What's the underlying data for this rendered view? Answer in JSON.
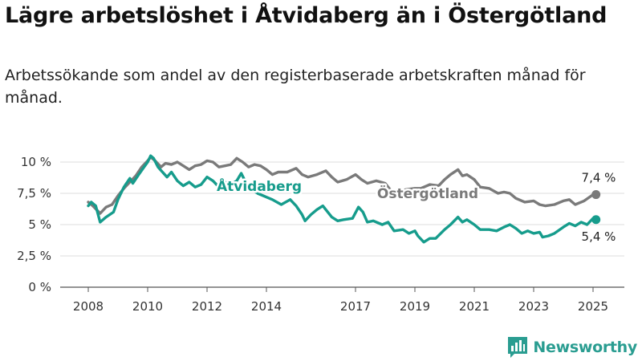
{
  "title": "Lägre arbetslöshet i Åtvidaberg än i Östergötland",
  "subtitle": "Arbetssökande som andel av den registerbaserade arbetskraften månad för månad.",
  "brand": "Newsworthy",
  "colors": {
    "atvidaberg": "#169c8c",
    "ostergotland": "#7a7a7a",
    "grid": "#dddddd",
    "brand": "#2a9d91"
  },
  "icons": {
    "logo": "bar-chart-icon"
  },
  "chart_data": {
    "type": "line",
    "x_ticks": [
      "2008",
      "2010",
      "2012",
      "2014",
      "2017",
      "2019",
      "2021",
      "2023",
      "2025"
    ],
    "y_ticks": [
      "0 %",
      "2,5 %",
      "5 %",
      "7,5 %",
      "10 %"
    ],
    "ylim": [
      0,
      10
    ],
    "series": [
      {
        "name": "Åtvidaberg",
        "end_label": "5,4 %",
        "values": [
          [
            2008.0,
            6.5
          ],
          [
            2008.1,
            6.8
          ],
          [
            2008.25,
            6.5
          ],
          [
            2008.4,
            5.2
          ],
          [
            2008.6,
            5.6
          ],
          [
            2008.85,
            6.0
          ],
          [
            2009.0,
            7.0
          ],
          [
            2009.2,
            8.0
          ],
          [
            2009.4,
            8.7
          ],
          [
            2009.5,
            8.3
          ],
          [
            2009.7,
            9.0
          ],
          [
            2009.85,
            9.5
          ],
          [
            2010.0,
            10.0
          ],
          [
            2010.1,
            10.5
          ],
          [
            2010.2,
            10.3
          ],
          [
            2010.35,
            9.6
          ],
          [
            2010.5,
            9.2
          ],
          [
            2010.65,
            8.8
          ],
          [
            2010.8,
            9.2
          ],
          [
            2011.0,
            8.5
          ],
          [
            2011.2,
            8.1
          ],
          [
            2011.4,
            8.4
          ],
          [
            2011.6,
            8.0
          ],
          [
            2011.8,
            8.2
          ],
          [
            2012.0,
            8.8
          ],
          [
            2012.2,
            8.5
          ],
          [
            2012.4,
            8.0
          ],
          [
            2012.6,
            8.4
          ],
          [
            2012.8,
            8.2
          ],
          [
            2013.0,
            8.5
          ],
          [
            2013.15,
            9.1
          ],
          [
            2013.3,
            8.4
          ],
          [
            2013.5,
            7.8
          ],
          [
            2013.7,
            7.5
          ],
          [
            2014.0,
            7.2
          ],
          [
            2014.2,
            7.0
          ],
          [
            2014.5,
            6.6
          ],
          [
            2014.8,
            7.0
          ],
          [
            2015.0,
            6.5
          ],
          [
            2015.2,
            5.8
          ],
          [
            2015.3,
            5.3
          ],
          [
            2015.5,
            5.8
          ],
          [
            2015.7,
            6.2
          ],
          [
            2015.9,
            6.5
          ],
          [
            2016.0,
            6.2
          ],
          [
            2016.2,
            5.6
          ],
          [
            2016.4,
            5.3
          ],
          [
            2016.6,
            5.4
          ],
          [
            2016.9,
            5.5
          ],
          [
            2017.1,
            6.4
          ],
          [
            2017.25,
            6.0
          ],
          [
            2017.4,
            5.2
          ],
          [
            2017.6,
            5.3
          ],
          [
            2017.9,
            5.0
          ],
          [
            2018.1,
            5.2
          ],
          [
            2018.3,
            4.5
          ],
          [
            2018.6,
            4.6
          ],
          [
            2018.8,
            4.3
          ],
          [
            2019.0,
            4.5
          ],
          [
            2019.1,
            4.1
          ],
          [
            2019.3,
            3.6
          ],
          [
            2019.5,
            3.9
          ],
          [
            2019.7,
            3.9
          ],
          [
            2020.0,
            4.6
          ],
          [
            2020.2,
            5.0
          ],
          [
            2020.45,
            5.6
          ],
          [
            2020.6,
            5.2
          ],
          [
            2020.75,
            5.4
          ],
          [
            2021.0,
            5.0
          ],
          [
            2021.2,
            4.6
          ],
          [
            2021.5,
            4.6
          ],
          [
            2021.75,
            4.5
          ],
          [
            2022.0,
            4.8
          ],
          [
            2022.2,
            5.0
          ],
          [
            2022.4,
            4.7
          ],
          [
            2022.6,
            4.3
          ],
          [
            2022.8,
            4.5
          ],
          [
            2023.0,
            4.3
          ],
          [
            2023.2,
            4.4
          ],
          [
            2023.3,
            4.0
          ],
          [
            2023.5,
            4.1
          ],
          [
            2023.7,
            4.3
          ],
          [
            2024.0,
            4.8
          ],
          [
            2024.2,
            5.1
          ],
          [
            2024.4,
            4.9
          ],
          [
            2024.6,
            5.2
          ],
          [
            2024.8,
            5.0
          ],
          [
            2025.0,
            5.5
          ],
          [
            2025.1,
            5.4
          ]
        ]
      },
      {
        "name": "Östergötland",
        "end_label": "7,4 %",
        "values": [
          [
            2008.0,
            6.8
          ],
          [
            2008.15,
            6.5
          ],
          [
            2008.4,
            5.9
          ],
          [
            2008.6,
            6.4
          ],
          [
            2008.8,
            6.6
          ],
          [
            2009.0,
            7.3
          ],
          [
            2009.2,
            7.9
          ],
          [
            2009.4,
            8.4
          ],
          [
            2009.6,
            8.9
          ],
          [
            2009.8,
            9.6
          ],
          [
            2010.0,
            10.1
          ],
          [
            2010.1,
            10.4
          ],
          [
            2010.25,
            10.1
          ],
          [
            2010.45,
            9.6
          ],
          [
            2010.6,
            9.9
          ],
          [
            2010.8,
            9.8
          ],
          [
            2011.0,
            10.0
          ],
          [
            2011.2,
            9.7
          ],
          [
            2011.4,
            9.4
          ],
          [
            2011.6,
            9.7
          ],
          [
            2011.8,
            9.8
          ],
          [
            2012.0,
            10.1
          ],
          [
            2012.2,
            10.0
          ],
          [
            2012.4,
            9.6
          ],
          [
            2012.6,
            9.7
          ],
          [
            2012.8,
            9.8
          ],
          [
            2013.0,
            10.3
          ],
          [
            2013.2,
            10.0
          ],
          [
            2013.4,
            9.6
          ],
          [
            2013.6,
            9.8
          ],
          [
            2013.8,
            9.7
          ],
          [
            2014.0,
            9.4
          ],
          [
            2014.2,
            9.0
          ],
          [
            2014.4,
            9.2
          ],
          [
            2014.7,
            9.2
          ],
          [
            2015.0,
            9.5
          ],
          [
            2015.2,
            9.0
          ],
          [
            2015.4,
            8.8
          ],
          [
            2015.7,
            9.0
          ],
          [
            2016.0,
            9.3
          ],
          [
            2016.2,
            8.8
          ],
          [
            2016.4,
            8.4
          ],
          [
            2016.7,
            8.6
          ],
          [
            2017.0,
            9.0
          ],
          [
            2017.2,
            8.6
          ],
          [
            2017.4,
            8.3
          ],
          [
            2017.7,
            8.5
          ],
          [
            2018.0,
            8.3
          ],
          [
            2018.2,
            7.7
          ],
          [
            2018.4,
            7.6
          ],
          [
            2018.7,
            7.8
          ],
          [
            2019.0,
            7.9
          ],
          [
            2019.2,
            7.9
          ],
          [
            2019.5,
            8.2
          ],
          [
            2019.8,
            8.1
          ],
          [
            2020.0,
            8.6
          ],
          [
            2020.2,
            9.0
          ],
          [
            2020.45,
            9.4
          ],
          [
            2020.6,
            8.9
          ],
          [
            2020.75,
            9.0
          ],
          [
            2021.0,
            8.6
          ],
          [
            2021.2,
            8.0
          ],
          [
            2021.5,
            7.9
          ],
          [
            2021.8,
            7.5
          ],
          [
            2022.0,
            7.6
          ],
          [
            2022.2,
            7.5
          ],
          [
            2022.4,
            7.1
          ],
          [
            2022.7,
            6.8
          ],
          [
            2023.0,
            6.9
          ],
          [
            2023.2,
            6.6
          ],
          [
            2023.4,
            6.5
          ],
          [
            2023.7,
            6.6
          ],
          [
            2024.0,
            6.9
          ],
          [
            2024.2,
            7.0
          ],
          [
            2024.4,
            6.6
          ],
          [
            2024.7,
            6.9
          ],
          [
            2025.0,
            7.4
          ],
          [
            2025.1,
            7.4
          ]
        ]
      }
    ]
  }
}
